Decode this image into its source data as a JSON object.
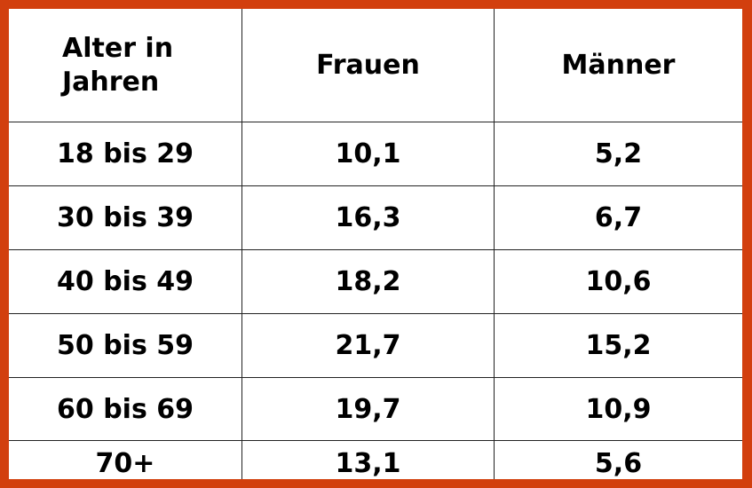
{
  "table": {
    "header": [
      "Alter in Jahren",
      "Frauen",
      "Männer"
    ],
    "rows": [
      [
        "18 bis 29",
        "10,1",
        "5,2"
      ],
      [
        "30 bis 39",
        "16,3",
        "6,7"
      ],
      [
        "40 bis 49",
        "18,2",
        "10,6"
      ],
      [
        "50 bis 59",
        "21,7",
        "15,2"
      ],
      [
        "60 bis 69",
        "19,7",
        "10,9"
      ],
      [
        "70+",
        "13,1",
        "5,6"
      ]
    ]
  }
}
